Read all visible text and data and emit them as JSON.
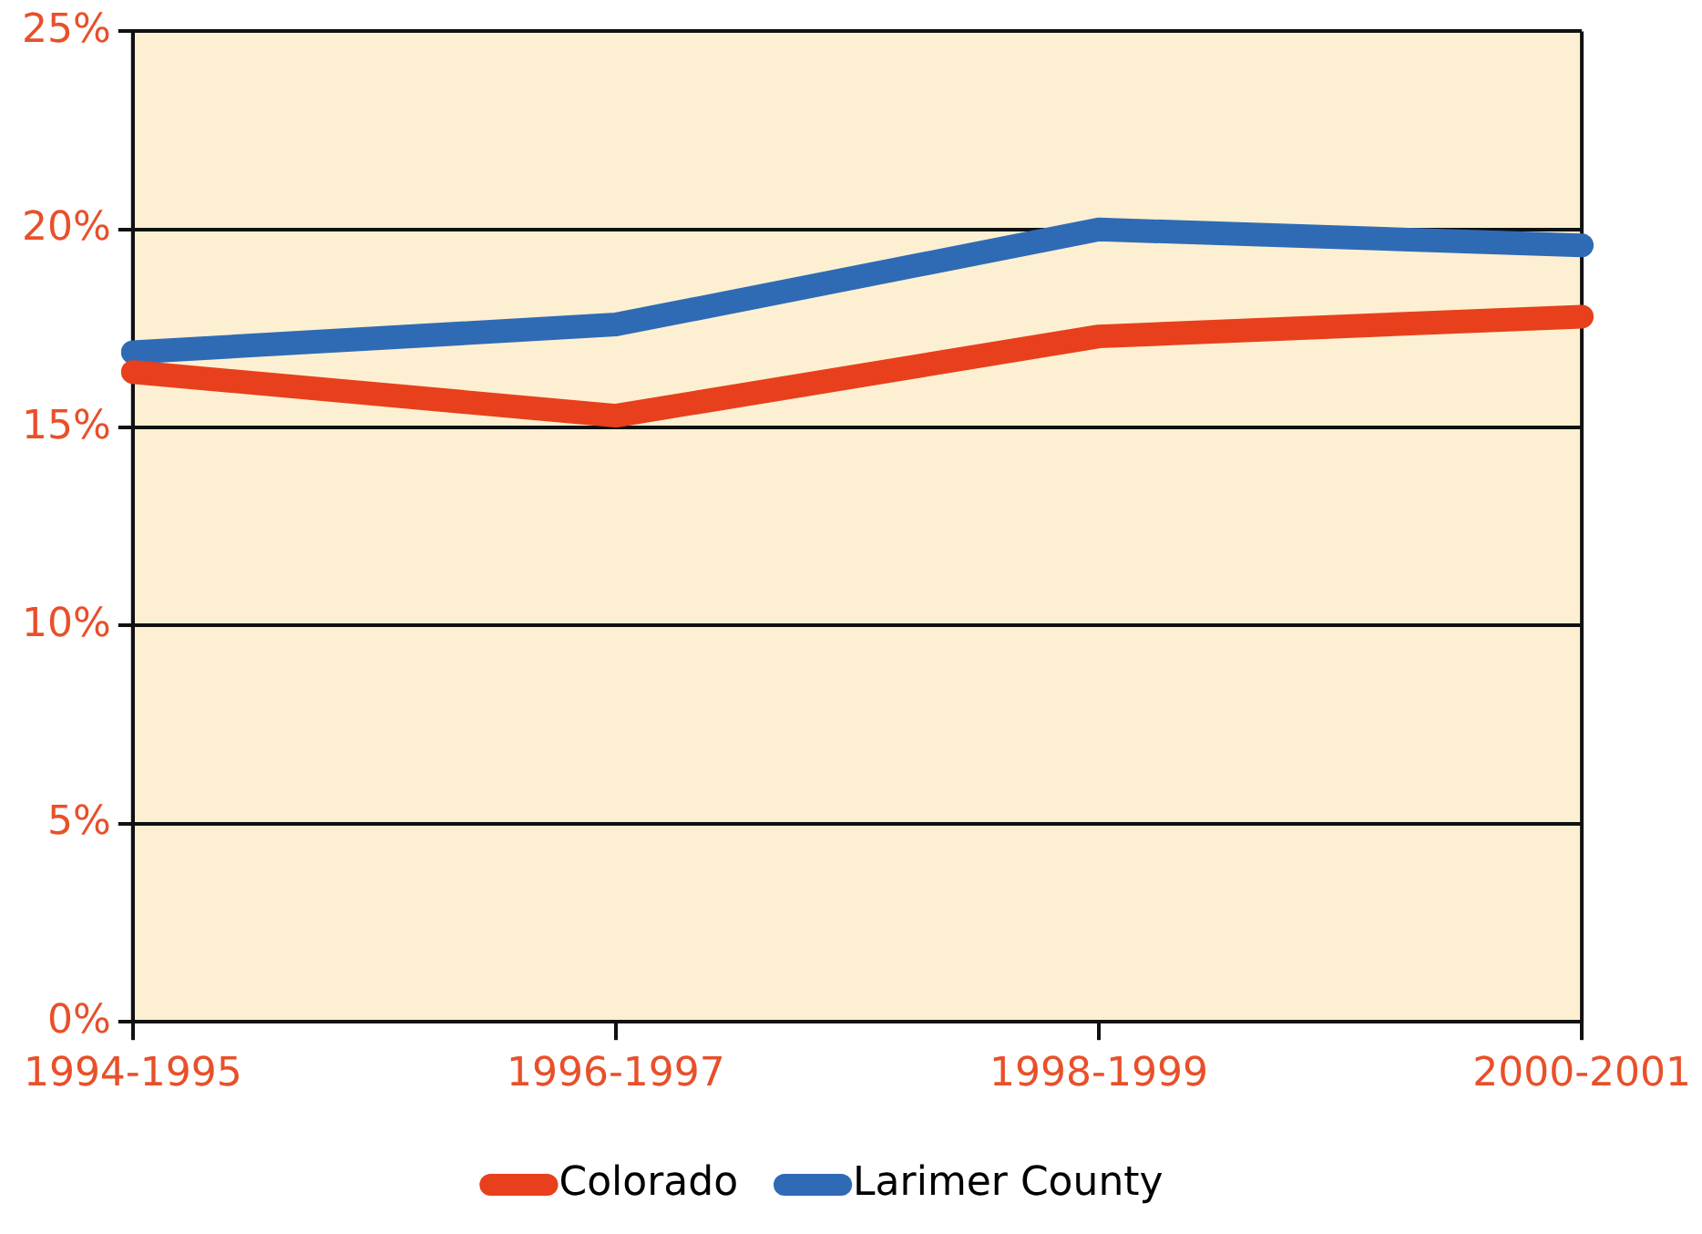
{
  "chart_data": {
    "type": "line",
    "categories": [
      "1994-1995",
      "1996-1997",
      "1998-1999",
      "2000-2001"
    ],
    "series": [
      {
        "name": "Colorado",
        "color": "#e8401c",
        "values": [
          16.4,
          15.3,
          17.3,
          17.8
        ]
      },
      {
        "name": "Larimer County",
        "color": "#2f6bb5",
        "values": [
          16.9,
          17.6,
          20.0,
          19.6
        ]
      }
    ],
    "ylim": [
      0,
      25
    ],
    "yticks": [
      {
        "value": 0,
        "label": "0%"
      },
      {
        "value": 5,
        "label": "5%"
      },
      {
        "value": 10,
        "label": "10%"
      },
      {
        "value": 15,
        "label": "15%"
      },
      {
        "value": 20,
        "label": "20%"
      },
      {
        "value": 25,
        "label": "25%"
      }
    ],
    "grid": "y",
    "legend": "bottom",
    "marker": "none",
    "line_style": "solid"
  }
}
